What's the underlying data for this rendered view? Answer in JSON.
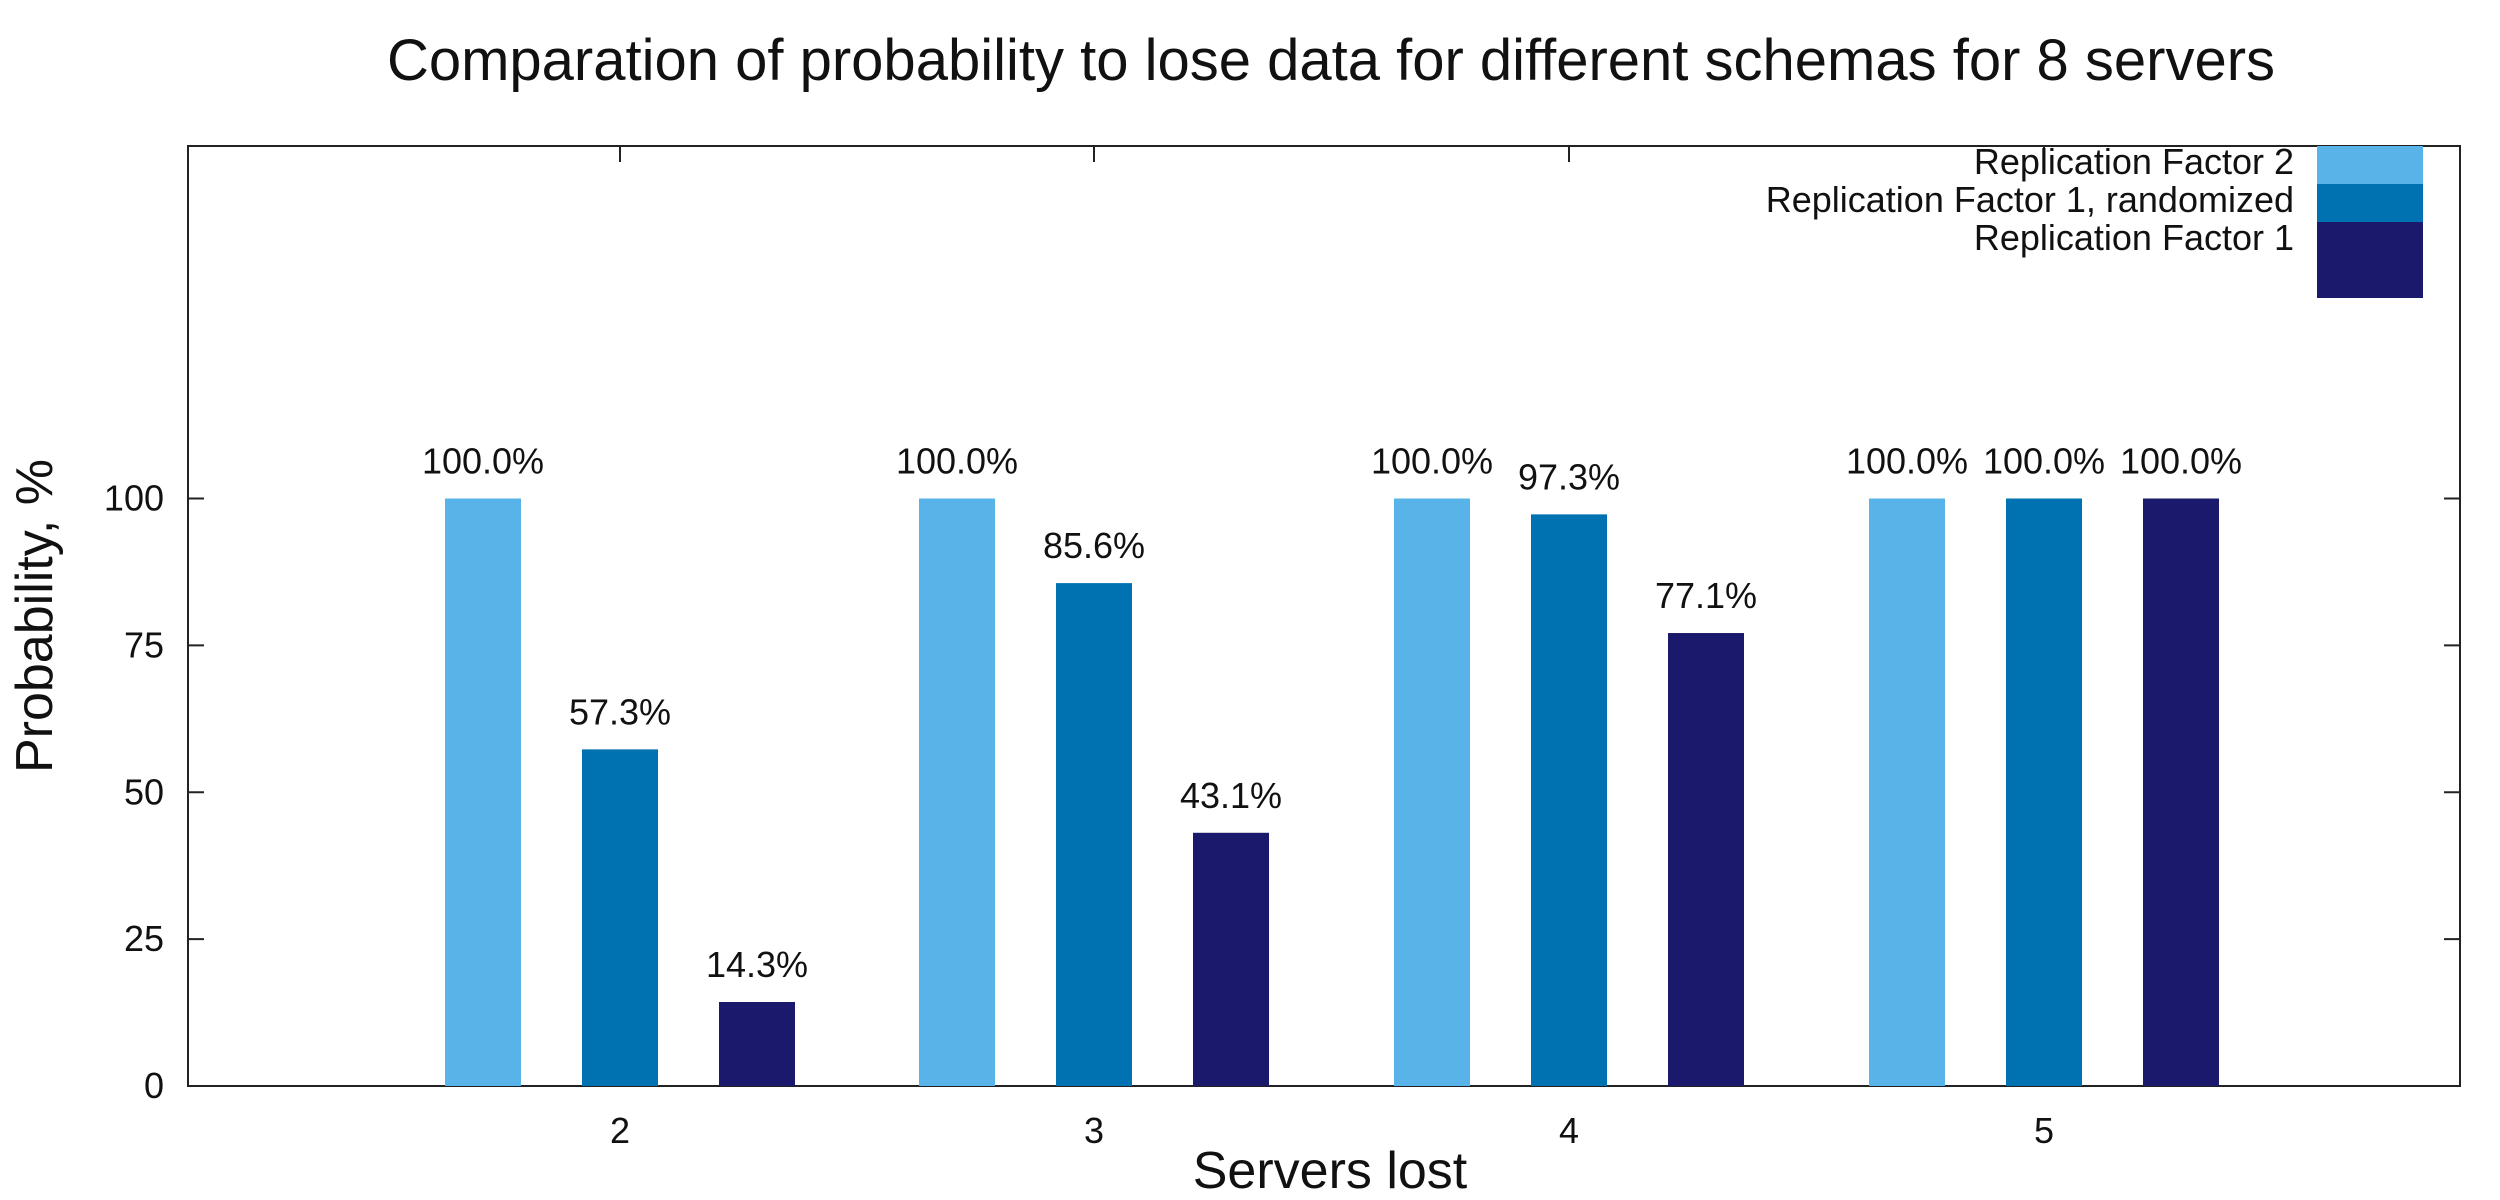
{
  "chart_data": {
    "type": "bar",
    "title": "Comparation of probability to lose data for different schemas for 8 servers",
    "xlabel": "Servers lost",
    "ylabel": "Probability, %",
    "categories": [
      "2",
      "3",
      "4",
      "5"
    ],
    "ylim": [
      0,
      160
    ],
    "yticks": [
      0,
      25,
      50,
      75,
      100
    ],
    "grid": false,
    "legend_position": "top-right",
    "series": [
      {
        "name": "Replication Factor 2",
        "color": "#58b3e8",
        "values": [
          100.0,
          100.0,
          100.0,
          100.0
        ],
        "labels": [
          "100.0%",
          "100.0%",
          "100.0%",
          "100.0%"
        ]
      },
      {
        "name": "Replication Factor 1, randomized",
        "color": "#0072b1",
        "values": [
          57.3,
          85.6,
          97.3,
          100.0
        ],
        "labels": [
          "57.3%",
          "85.6%",
          "97.3%",
          "100.0%"
        ]
      },
      {
        "name": "Replication Factor 1",
        "color": "#1b196b",
        "values": [
          14.3,
          43.1,
          77.1,
          100.0
        ],
        "labels": [
          "14.3%",
          "43.1%",
          "77.1%",
          "100.0%"
        ]
      }
    ]
  }
}
